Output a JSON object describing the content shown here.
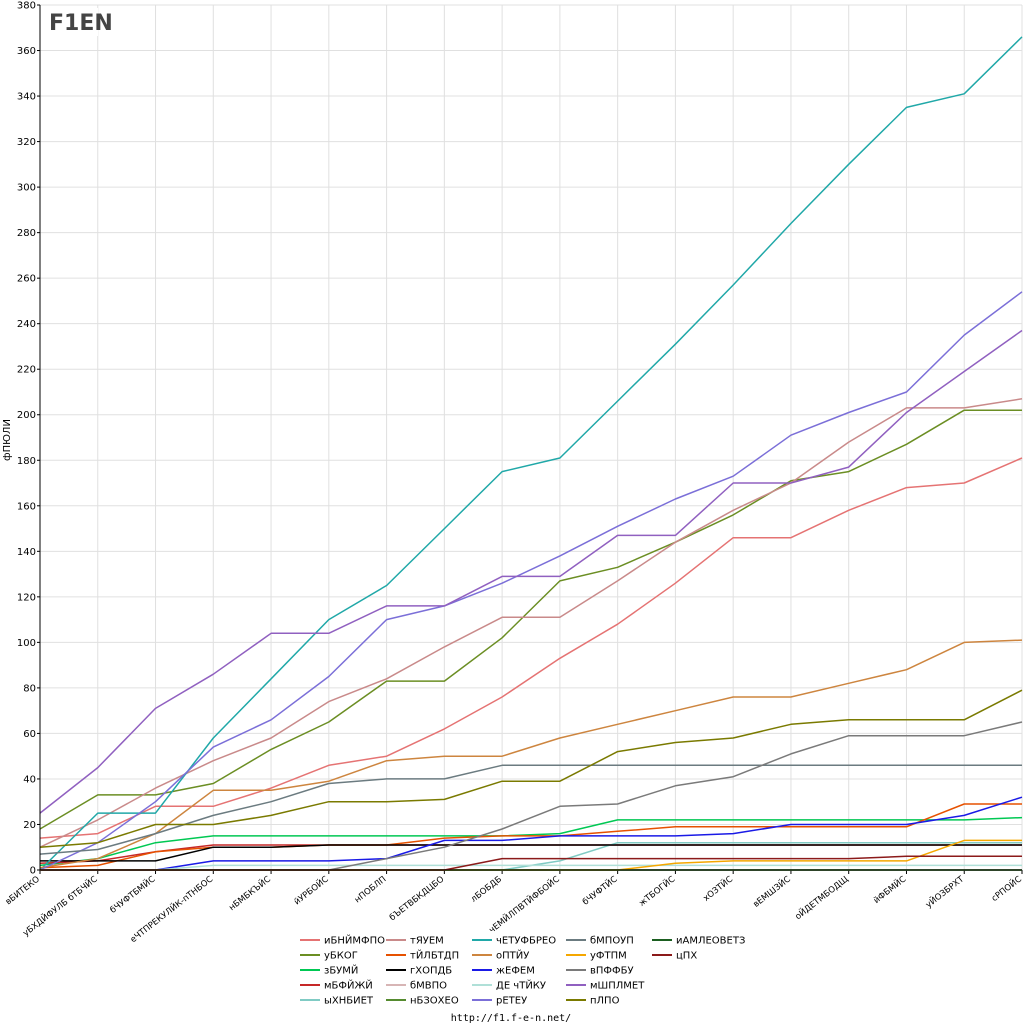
{
  "logo_text": "F1EN",
  "footer_url": "http://f1.f-e-n.net/",
  "chart_data": {
    "type": "line",
    "ylabel": "фПЮЛИ",
    "ylim": [
      0,
      380
    ],
    "yticks": [
      0,
      20,
      40,
      60,
      80,
      100,
      120,
      140,
      160,
      180,
      200,
      220,
      240,
      260,
      280,
      300,
      320,
      340,
      360,
      380
    ],
    "grid": true,
    "legend_position": "bottom",
    "categories": [
      "вБИТЕКО",
      "уБХДЙФУЛБ бТБЧЙС",
      "бЧУФТБМЙС",
      "еЧТПРЕКУЛЙК-пТНБОС",
      "нБМБКЪЙС",
      "йУРБОЙС",
      "нПОБЛП",
      "бЪЕТВБКДЦБО",
      "лБОБДБ",
      "чЕМЙЛПВТЙФБОЙС",
      "бЧУФТЙС",
      "жТБОГЙС",
      "хОЗТЙС",
      "вЕМШЗЙС",
      "оЙДЕТМБОДЩ",
      "йФБМЙС",
      "уЙОЗБРХТ",
      "сРПОЙС"
    ],
    "series": [
      {
        "name": "иБНЙМФПО",
        "color": "#e57373",
        "values": [
          14,
          16,
          28,
          28,
          36,
          46,
          50,
          62,
          76,
          93,
          108,
          126,
          146,
          146,
          158,
          168,
          170,
          181
        ]
      },
      {
        "name": "уБКОГ",
        "color": "#6b8e23",
        "values": [
          18,
          33,
          33,
          38,
          53,
          65,
          83,
          83,
          102,
          127,
          133,
          144,
          156,
          171,
          175,
          187,
          202,
          202
        ]
      },
      {
        "name": "зБУМЙ",
        "color": "#00c853",
        "values": [
          2,
          5,
          12,
          15,
          15,
          15,
          15,
          15,
          15,
          16,
          22,
          22,
          22,
          22,
          22,
          22,
          22,
          23
        ]
      },
      {
        "name": "мБФЙЖЙ",
        "color": "#c62828",
        "values": [
          3,
          4,
          8,
          11,
          11,
          11,
          11,
          11,
          11,
          11,
          11,
          11,
          11,
          11,
          11,
          11,
          11,
          11
        ]
      },
      {
        "name": "ыХНБИЕТ",
        "color": "#80cbc4",
        "values": [
          0,
          0,
          0,
          0,
          0,
          0,
          0,
          0,
          0,
          4,
          12,
          12,
          12,
          12,
          12,
          12,
          12,
          12
        ]
      },
      {
        "name": "тЯУЕМ",
        "color": "#c98a8a",
        "values": [
          10,
          22,
          36,
          48,
          58,
          74,
          84,
          98,
          111,
          111,
          127,
          144,
          158,
          170,
          188,
          203,
          203,
          207
        ]
      },
      {
        "name": "тЙЛБТДП",
        "color": "#e65100",
        "values": [
          1,
          2,
          8,
          10,
          10,
          11,
          11,
          14,
          15,
          15,
          17,
          19,
          19,
          19,
          19,
          19,
          29,
          29
        ]
      },
      {
        "name": "гХОПДБ",
        "color": "#000000",
        "values": [
          4,
          4,
          4,
          10,
          10,
          11,
          11,
          11,
          11,
          11,
          11,
          11,
          11,
          11,
          11,
          11,
          11,
          11
        ]
      },
      {
        "name": "бМВПО",
        "color": "#d7b5b5",
        "values": [
          0,
          0,
          0,
          0,
          0,
          0,
          0,
          0,
          0,
          0,
          0,
          0,
          0,
          0,
          0,
          0,
          0,
          0
        ]
      },
      {
        "name": "нБЗОХЕО",
        "color": "#558b2f",
        "values": [
          0,
          0,
          0,
          0,
          0,
          0,
          0,
          0,
          0,
          0,
          0,
          0,
          0,
          0,
          0,
          0,
          0,
          0
        ]
      },
      {
        "name": "чЕТУФБРЕО",
        "color": "#20a8a8",
        "values": [
          0,
          25,
          25,
          58,
          84,
          110,
          125,
          150,
          175,
          181,
          206,
          231,
          257,
          284,
          310,
          335,
          341,
          366
        ]
      },
      {
        "name": "оПТЙУ",
        "color": "#cd853f",
        "values": [
          1,
          5,
          16,
          35,
          35,
          39,
          48,
          50,
          50,
          58,
          64,
          70,
          76,
          76,
          82,
          88,
          100,
          101
        ]
      },
      {
        "name": "жЕФЕМ",
        "color": "#1a1ae6",
        "values": [
          0,
          0,
          0,
          4,
          4,
          4,
          5,
          13,
          13,
          15,
          15,
          15,
          16,
          20,
          20,
          20,
          24,
          32
        ]
      },
      {
        "name": "ДЕ чТЙКУ",
        "color": "#b0e0d8",
        "values": [
          0,
          0,
          0,
          2,
          2,
          2,
          2,
          2,
          2,
          2,
          2,
          2,
          2,
          2,
          2,
          2,
          2,
          2
        ]
      },
      {
        "name": "рЕТЕУ",
        "color": "#7b6fd8",
        "values": [
          0,
          12,
          30,
          54,
          66,
          85,
          110,
          116,
          126,
          138,
          151,
          163,
          173,
          191,
          201,
          210,
          235,
          254
        ]
      },
      {
        "name": "бМПОУП",
        "color": "#6b7b80",
        "values": [
          7,
          9,
          16,
          24,
          30,
          38,
          40,
          40,
          46,
          46,
          46,
          46,
          46,
          46,
          46,
          46,
          46,
          46
        ]
      },
      {
        "name": "уФТПМ",
        "color": "#f5a700",
        "values": [
          0,
          0,
          0,
          0,
          0,
          0,
          0,
          0,
          0,
          0,
          0,
          3,
          4,
          4,
          4,
          4,
          13,
          13
        ]
      },
      {
        "name": "вПФФБУ",
        "color": "#7a7a7a",
        "values": [
          0,
          0,
          0,
          0,
          0,
          0,
          5,
          10,
          18,
          28,
          29,
          37,
          41,
          51,
          59,
          59,
          59,
          65
        ]
      },
      {
        "name": "мШПЛМЕТ",
        "color": "#9060c0",
        "values": [
          25,
          45,
          71,
          86,
          104,
          104,
          116,
          116,
          129,
          129,
          147,
          147,
          170,
          170,
          177,
          201,
          219,
          237
        ]
      },
      {
        "name": "пЛПО",
        "color": "#7a7a00",
        "values": [
          10,
          12,
          20,
          20,
          24,
          30,
          30,
          31,
          39,
          39,
          52,
          56,
          58,
          64,
          66,
          66,
          66,
          79
        ]
      },
      {
        "name": "иАМЛЕОВЕТЗ",
        "color": "#1b5e20",
        "values": [
          0,
          0,
          0,
          0,
          0,
          0,
          0,
          0,
          0,
          0,
          0,
          0,
          0,
          0,
          0,
          0,
          0,
          0
        ]
      },
      {
        "name": "цПХ",
        "color": "#8b1a1a",
        "values": [
          0,
          0,
          0,
          0,
          0,
          0,
          0,
          0,
          5,
          5,
          5,
          5,
          5,
          5,
          5,
          6,
          6,
          6
        ]
      }
    ]
  }
}
